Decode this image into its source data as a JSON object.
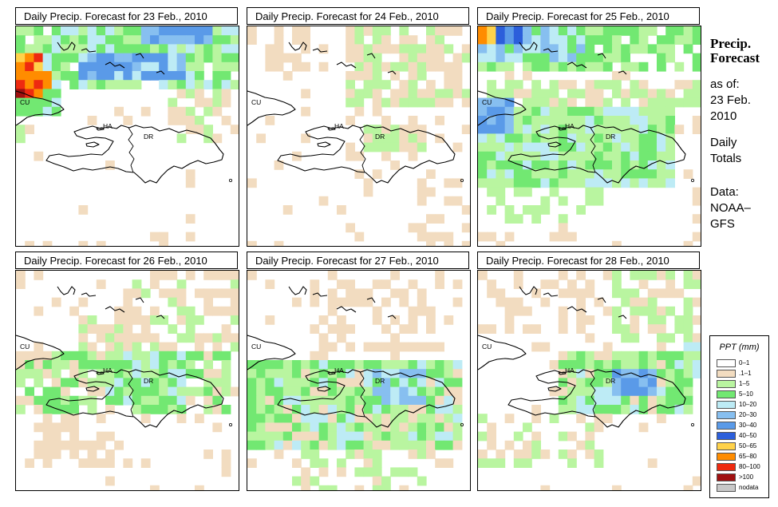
{
  "panels": [
    {
      "title": "Daily Precip. Forecast for  23 Feb., 2010"
    },
    {
      "title": "Daily Precip. Forecast for  24 Feb., 2010"
    },
    {
      "title": "Daily Precip. Forecast for  25 Feb., 2010"
    },
    {
      "title": "Daily Precip. Forecast for  26 Feb., 2010"
    },
    {
      "title": "Daily Precip. Forecast for  27 Feb., 2010"
    },
    {
      "title": "Daily Precip. Forecast for  28 Feb., 2010"
    }
  ],
  "map_labels": {
    "cuba": "CU",
    "haiti": "HA",
    "dominican_republic": "DR"
  },
  "sidebar": {
    "title_line1": "Precip.",
    "title_line2": "Forecast",
    "asof_label": "as of:",
    "date_line1": "23 Feb.",
    "date_line2": "2010",
    "totals_line1": "Daily",
    "totals_line2": "Totals",
    "data_line1": "Data:",
    "data_line2": "NOAA–",
    "data_line3": "GFS"
  },
  "legend": {
    "title": "PPT (mm)",
    "items": [
      {
        "label": "0–1",
        "color": "#ffffff"
      },
      {
        "label": ".1–1",
        "color": "#f2dcc0"
      },
      {
        "label": "1–5",
        "color": "#b9f5a0"
      },
      {
        "label": "5–10",
        "color": "#72e872"
      },
      {
        "label": "10–20",
        "color": "#bdebf5"
      },
      {
        "label": "20–30",
        "color": "#87bff0"
      },
      {
        "label": "30–40",
        "color": "#5a9ae8"
      },
      {
        "label": "40–50",
        "color": "#2c5fdb"
      },
      {
        "label": "50–65",
        "color": "#ffd24a"
      },
      {
        "label": "65–80",
        "color": "#ff8c00"
      },
      {
        "label": "80–100",
        "color": "#ee2a10"
      },
      {
        "label": ">100",
        "color": "#a01010"
      },
      {
        "label": "nodata",
        "color": "#c8c8c8"
      }
    ]
  }
}
